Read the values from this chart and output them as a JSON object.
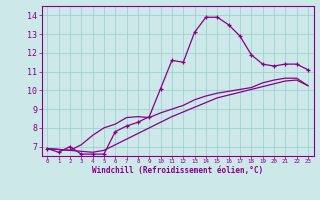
{
  "xlabel": "Windchill (Refroidissement éolien,°C)",
  "xlim": [
    -0.5,
    23.5
  ],
  "ylim": [
    6.5,
    14.5
  ],
  "yticks": [
    7,
    8,
    9,
    10,
    11,
    12,
    13,
    14
  ],
  "xticks": [
    0,
    1,
    2,
    3,
    4,
    5,
    6,
    7,
    8,
    9,
    10,
    11,
    12,
    13,
    14,
    15,
    16,
    17,
    18,
    19,
    20,
    21,
    22,
    23
  ],
  "bg_color": "#cce8e8",
  "line_color": "#880088",
  "grid_color": "#99cccc",
  "line1_x": [
    0,
    1,
    2,
    3,
    4,
    5,
    6,
    7,
    8,
    9,
    10,
    11,
    12,
    13,
    14,
    15,
    16,
    17,
    18,
    19,
    20,
    21,
    22,
    23
  ],
  "line1_y": [
    6.9,
    6.7,
    7.0,
    6.6,
    6.6,
    6.6,
    7.8,
    8.1,
    8.3,
    8.6,
    10.1,
    11.6,
    11.5,
    13.1,
    13.9,
    13.9,
    13.5,
    12.9,
    11.9,
    11.4,
    11.3,
    11.4,
    11.4,
    11.1
  ],
  "line2_x": [
    0,
    1,
    2,
    3,
    4,
    5,
    6,
    7,
    8,
    9,
    10,
    11,
    12,
    13,
    14,
    15,
    16,
    17,
    18,
    19,
    20,
    21,
    22,
    23
  ],
  "line2_y": [
    6.9,
    6.85,
    6.8,
    6.75,
    6.7,
    6.8,
    7.1,
    7.4,
    7.7,
    8.0,
    8.3,
    8.6,
    8.85,
    9.1,
    9.35,
    9.6,
    9.75,
    9.9,
    10.05,
    10.2,
    10.35,
    10.5,
    10.55,
    10.25
  ],
  "line3_x": [
    0,
    1,
    2,
    3,
    4,
    5,
    6,
    7,
    8,
    9,
    10,
    11,
    12,
    13,
    14,
    15,
    16,
    17,
    18,
    19,
    20,
    21,
    22,
    23
  ],
  "line3_y": [
    6.9,
    6.85,
    6.8,
    7.1,
    7.6,
    8.0,
    8.2,
    8.55,
    8.6,
    8.55,
    8.8,
    9.0,
    9.2,
    9.5,
    9.7,
    9.85,
    9.95,
    10.05,
    10.15,
    10.4,
    10.55,
    10.65,
    10.65,
    10.25
  ],
  "xlabel_fontsize": 5.5,
  "ytick_fontsize": 6.0,
  "xtick_fontsize": 4.2
}
